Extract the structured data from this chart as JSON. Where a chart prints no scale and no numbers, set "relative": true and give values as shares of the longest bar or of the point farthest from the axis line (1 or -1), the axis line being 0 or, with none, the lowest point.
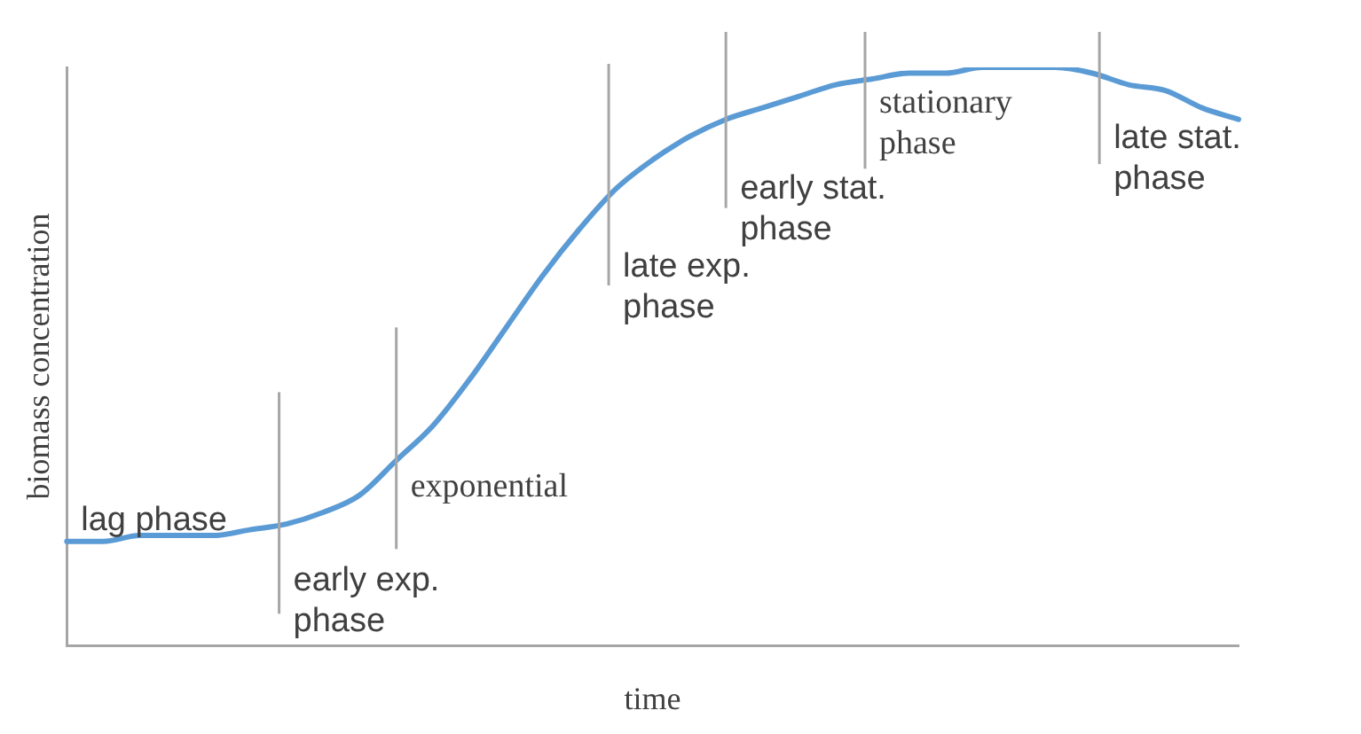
{
  "chart_data": {
    "type": "line",
    "relative": true,
    "xlabel": "time",
    "ylabel": "biomass concentration",
    "categories": [
      null,
      null,
      null,
      null,
      null,
      null,
      null,
      null,
      null,
      null,
      null,
      null,
      null,
      null,
      null,
      null,
      null,
      null,
      null,
      null,
      null,
      null,
      null,
      null,
      null,
      null,
      null,
      null,
      null,
      null,
      null,
      null,
      null
    ],
    "series": [
      {
        "color": "#5b9bd5",
        "values": [
          0.18,
          0.18,
          0.19,
          0.19,
          0.19,
          0.2,
          0.21,
          0.23,
          0.26,
          0.32,
          0.38,
          0.46,
          0.55,
          0.64,
          0.72,
          0.79,
          0.84,
          0.88,
          0.91,
          0.93,
          0.95,
          0.97,
          0.98,
          0.99,
          0.99,
          1,
          1,
          1,
          0.99,
          0.97,
          0.96,
          0.93,
          0.91
        ]
      }
    ],
    "annotations": [
      "lag phase",
      "early exp. phase",
      "exponential",
      "late exp. phase",
      "early stat. phase",
      "stationary phase",
      "late stat. phase"
    ],
    "grid": false,
    "legend": false,
    "marker": "none",
    "line_style": "solid"
  }
}
